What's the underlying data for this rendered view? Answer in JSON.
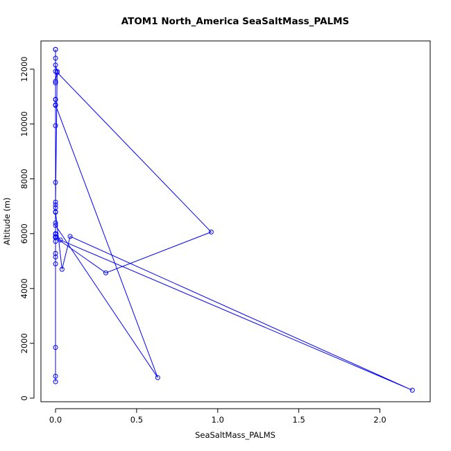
{
  "chart_data": {
    "type": "line",
    "title": "ATOM1 North_America SeaSaltMass_PALMS",
    "xlabel": "SeaSaltMass_PALMS",
    "ylabel": "Altitude (m)",
    "xlim": [
      -0.09,
      2.31
    ],
    "ylim": [
      -130,
      13030
    ],
    "x_ticks": [
      0,
      0.5,
      1,
      1.5,
      2
    ],
    "x_tick_labels": [
      "0.0",
      "0.5",
      "1.0",
      "1.5",
      "2.0"
    ],
    "y_ticks": [
      0,
      2000,
      4000,
      6000,
      8000,
      10000,
      12000
    ],
    "y_tick_labels": [
      "0",
      "2000",
      "4000",
      "6000",
      "8000",
      "10000",
      "12000"
    ],
    "grid": false,
    "series_color": "#0000ff",
    "series": [
      {
        "x": [
          0.0,
          0.0,
          0.0,
          0.0,
          0.0,
          0.0,
          0.0,
          0.0,
          0.0,
          0.0,
          0.0,
          0.01,
          0.96,
          0.31,
          0.0,
          0.0,
          0.0,
          0.03,
          2.2,
          0.09,
          0.04,
          0.0,
          0.0,
          0.0,
          0.0,
          0.0,
          0.0,
          0.0,
          0.0,
          0.01,
          0.0,
          0.0,
          0.0,
          0.0,
          0.0,
          0.0,
          0.0,
          0.0,
          0.63,
          0.0,
          0.0
        ],
        "y": [
          600,
          1850,
          4900,
          5150,
          5280,
          5720,
          5850,
          5980,
          6390,
          6780,
          7050,
          11880,
          6060,
          4570,
          5860,
          5900,
          6000,
          5770,
          290,
          5900,
          4700,
          6800,
          6950,
          7150,
          7870,
          9940,
          10680,
          10890,
          11560,
          11920,
          12150,
          12400,
          12720,
          12720,
          11920,
          11500,
          10900,
          10700,
          750,
          6300,
          800
        ]
      }
    ]
  }
}
